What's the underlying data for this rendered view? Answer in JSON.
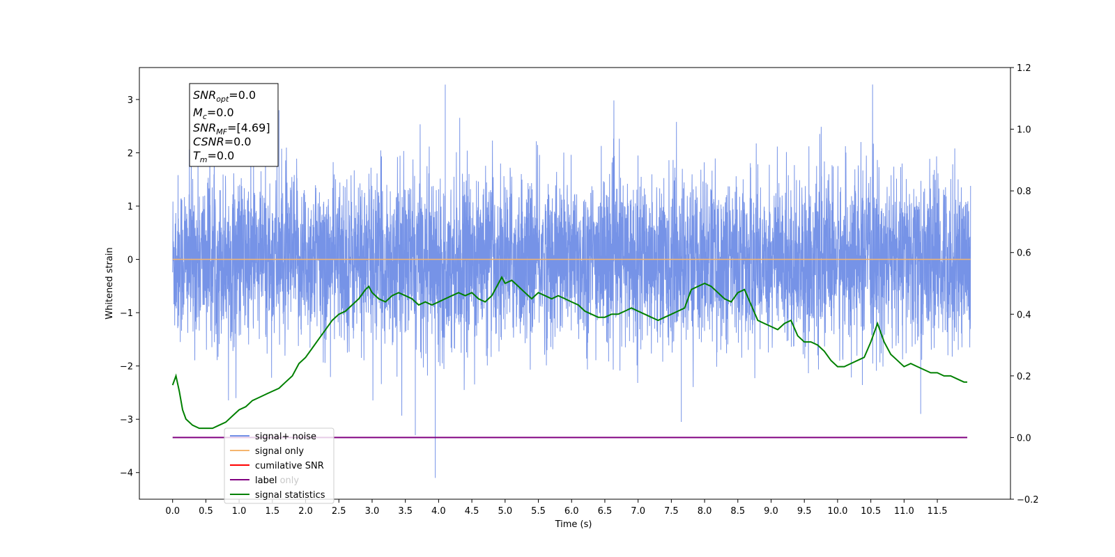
{
  "chart_data": {
    "type": "line",
    "xlabel": "Time (s)",
    "ylabel": "Whitened strain",
    "xlim": [
      -0.5,
      12.6
    ],
    "ylim": [
      -4.5,
      3.6
    ],
    "y2lim": [
      -0.2,
      1.2
    ],
    "x_ticks": [
      "0.0",
      "0.5",
      "1.0",
      "1.5",
      "2.0",
      "2.5",
      "3.0",
      "3.5",
      "4.0",
      "4.5",
      "5.0",
      "5.5",
      "6.0",
      "6.5",
      "7.0",
      "7.5",
      "8.0",
      "8.5",
      "9.0",
      "9.5",
      "10.0",
      "10.5",
      "11.0",
      "11.5"
    ],
    "y_ticks": [
      "3",
      "2",
      "1",
      "0",
      "−1",
      "−2",
      "−3",
      "−4"
    ],
    "y2_ticks": [
      "1.2",
      "1.0",
      "0.8",
      "0.6",
      "0.4",
      "0.2",
      "0.0",
      "−0.2"
    ],
    "annotation": {
      "snr_opt": "=0.0",
      "mc": "=0.0",
      "snr_mf": "=[4.69]",
      "csnr": "=0.0",
      "tm": "=0.0"
    },
    "legend_placement": "lower-left",
    "legend": [
      "signal+ noise",
      "signal only",
      "cumilative SNR",
      "label",
      "label only",
      "signal statistics"
    ],
    "series": [
      {
        "name": "signal+ noise",
        "color": "#6f8de6",
        "x_range": [
          0.0,
          12.0
        ],
        "y_range_approx": [
          -4.1,
          3.3
        ]
      },
      {
        "name": "signal only",
        "color": "#f5b56e",
        "x": [
          0.0,
          12.0
        ],
        "y": [
          0.0,
          0.0
        ]
      },
      {
        "name": "label",
        "color": "#800080",
        "axis": "right",
        "x": [
          0.0,
          11.95
        ],
        "y": [
          0.0,
          0.0
        ]
      },
      {
        "name": "signal statistics",
        "color": "#008000",
        "axis": "right",
        "x": [
          0.0,
          0.05,
          0.1,
          0.15,
          0.2,
          0.3,
          0.4,
          0.5,
          0.6,
          0.7,
          0.8,
          0.9,
          1.0,
          1.1,
          1.2,
          1.3,
          1.4,
          1.5,
          1.6,
          1.7,
          1.8,
          1.9,
          2.0,
          2.1,
          2.2,
          2.3,
          2.4,
          2.5,
          2.6,
          2.7,
          2.8,
          2.9,
          2.95,
          3.0,
          3.1,
          3.2,
          3.3,
          3.4,
          3.5,
          3.6,
          3.7,
          3.8,
          3.9,
          4.0,
          4.1,
          4.2,
          4.3,
          4.4,
          4.5,
          4.6,
          4.7,
          4.8,
          4.9,
          4.95,
          5.0,
          5.1,
          5.2,
          5.3,
          5.4,
          5.5,
          5.6,
          5.7,
          5.8,
          5.9,
          6.0,
          6.1,
          6.2,
          6.3,
          6.4,
          6.5,
          6.6,
          6.7,
          6.8,
          6.9,
          7.0,
          7.1,
          7.2,
          7.3,
          7.4,
          7.5,
          7.6,
          7.7,
          7.8,
          7.9,
          8.0,
          8.1,
          8.2,
          8.3,
          8.4,
          8.5,
          8.6,
          8.7,
          8.8,
          8.9,
          9.0,
          9.1,
          9.2,
          9.3,
          9.4,
          9.5,
          9.6,
          9.7,
          9.8,
          9.9,
          10.0,
          10.1,
          10.2,
          10.3,
          10.4,
          10.5,
          10.6,
          10.7,
          10.8,
          10.9,
          11.0,
          11.1,
          11.2,
          11.3,
          11.4,
          11.5,
          11.6,
          11.7,
          11.8,
          11.9,
          11.95
        ],
        "y": [
          0.17,
          0.2,
          0.15,
          0.09,
          0.06,
          0.04,
          0.03,
          0.03,
          0.03,
          0.04,
          0.05,
          0.07,
          0.09,
          0.1,
          0.12,
          0.13,
          0.14,
          0.15,
          0.16,
          0.18,
          0.2,
          0.24,
          0.26,
          0.29,
          0.32,
          0.35,
          0.38,
          0.4,
          0.41,
          0.43,
          0.45,
          0.48,
          0.49,
          0.47,
          0.45,
          0.44,
          0.46,
          0.47,
          0.46,
          0.45,
          0.43,
          0.44,
          0.43,
          0.44,
          0.45,
          0.46,
          0.47,
          0.46,
          0.47,
          0.45,
          0.44,
          0.46,
          0.5,
          0.52,
          0.5,
          0.51,
          0.49,
          0.47,
          0.45,
          0.47,
          0.46,
          0.45,
          0.46,
          0.45,
          0.44,
          0.43,
          0.41,
          0.4,
          0.39,
          0.39,
          0.4,
          0.4,
          0.41,
          0.42,
          0.41,
          0.4,
          0.39,
          0.38,
          0.39,
          0.4,
          0.41,
          0.42,
          0.48,
          0.49,
          0.5,
          0.49,
          0.47,
          0.45,
          0.44,
          0.47,
          0.48,
          0.43,
          0.38,
          0.37,
          0.36,
          0.35,
          0.37,
          0.38,
          0.33,
          0.31,
          0.31,
          0.3,
          0.28,
          0.25,
          0.23,
          0.23,
          0.24,
          0.25,
          0.26,
          0.31,
          0.37,
          0.31,
          0.27,
          0.25,
          0.23,
          0.24,
          0.23,
          0.22,
          0.21,
          0.21,
          0.2,
          0.2,
          0.19,
          0.18,
          0.18
        ]
      }
    ]
  }
}
